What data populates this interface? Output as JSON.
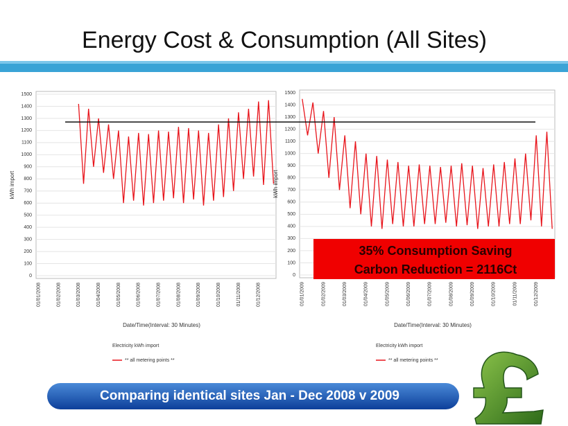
{
  "title": "Energy Cost & Consumption (All Sites)",
  "callout": [
    "35% Consumption Saving",
    "Carbon Reduction = 2116Ct"
  ],
  "banner": "Comparing identical sites Jan - Dec 2008 v 2009",
  "chart_data": [
    {
      "type": "line",
      "y_label": "kWh import",
      "x_label": "Date/Time(Interval: 30 Minutes)",
      "legend_title": "Electricity kWh import",
      "grid": true,
      "reference_line": 1270,
      "ylim": [
        0,
        1500
      ],
      "yticks": [
        0,
        100,
        200,
        300,
        400,
        500,
        600,
        700,
        800,
        900,
        1000,
        1100,
        1200,
        1300,
        1400,
        1500
      ],
      "categories": [
        "01/01/2008",
        null,
        null,
        null,
        "01/02/2008",
        null,
        null,
        null,
        "01/03/2008",
        null,
        null,
        null,
        "01/04/2008",
        null,
        null,
        null,
        "01/05/2008",
        null,
        null,
        null,
        "01/06/2008",
        null,
        null,
        null,
        "01/07/2008",
        null,
        null,
        null,
        "01/08/2008",
        null,
        null,
        null,
        "01/09/2008",
        null,
        null,
        null,
        "01/10/2008",
        null,
        null,
        null,
        "01/11/2008",
        null,
        null,
        null,
        "01/12/2008",
        null,
        null,
        null
      ],
      "series": [
        {
          "name": "** all metering points **",
          "color": "#e8141b",
          "values": [
            null,
            null,
            null,
            null,
            null,
            null,
            null,
            null,
            1420,
            760,
            1380,
            900,
            1300,
            850,
            1250,
            800,
            1200,
            600,
            1150,
            620,
            1180,
            580,
            1170,
            600,
            1200,
            620,
            1190,
            640,
            1230,
            600,
            1220,
            630,
            1200,
            580,
            1180,
            620,
            1250,
            650,
            1300,
            700,
            1350,
            800,
            1380,
            820,
            1440,
            750,
            1450,
            760
          ]
        }
      ]
    },
    {
      "type": "line",
      "y_label": "kWh import",
      "x_label": "Date/Time(Interval: 30 Minutes)",
      "legend_title": "Electricity kWh import",
      "grid": true,
      "ylim": [
        0,
        1500
      ],
      "yticks": [
        0,
        100,
        200,
        300,
        400,
        500,
        600,
        700,
        800,
        900,
        1000,
        1100,
        1200,
        1300,
        1400,
        1500
      ],
      "categories": [
        "01/01/2009",
        null,
        null,
        null,
        "01/02/2009",
        null,
        null,
        null,
        "01/03/2009",
        null,
        null,
        null,
        "01/04/2009",
        null,
        null,
        null,
        "01/05/2009",
        null,
        null,
        null,
        "01/06/2009",
        null,
        null,
        null,
        "01/07/2009",
        null,
        null,
        null,
        "01/08/2009",
        null,
        null,
        null,
        "01/09/2009",
        null,
        null,
        null,
        "01/10/2009",
        null,
        null,
        null,
        "01/11/2009",
        null,
        null,
        null,
        "01/12/2009",
        null,
        null,
        null
      ],
      "series": [
        {
          "name": "** all metering points **",
          "color": "#e8141b",
          "values": [
            1450,
            1150,
            1420,
            1000,
            1350,
            800,
            1300,
            700,
            1150,
            550,
            1100,
            500,
            1000,
            400,
            980,
            380,
            950,
            420,
            930,
            400,
            900,
            400,
            910,
            420,
            900,
            420,
            890,
            430,
            900,
            400,
            920,
            410,
            900,
            380,
            880,
            400,
            910,
            400,
            930,
            420,
            960,
            420,
            1000,
            450,
            1150,
            400,
            1180,
            380
          ]
        }
      ]
    }
  ]
}
